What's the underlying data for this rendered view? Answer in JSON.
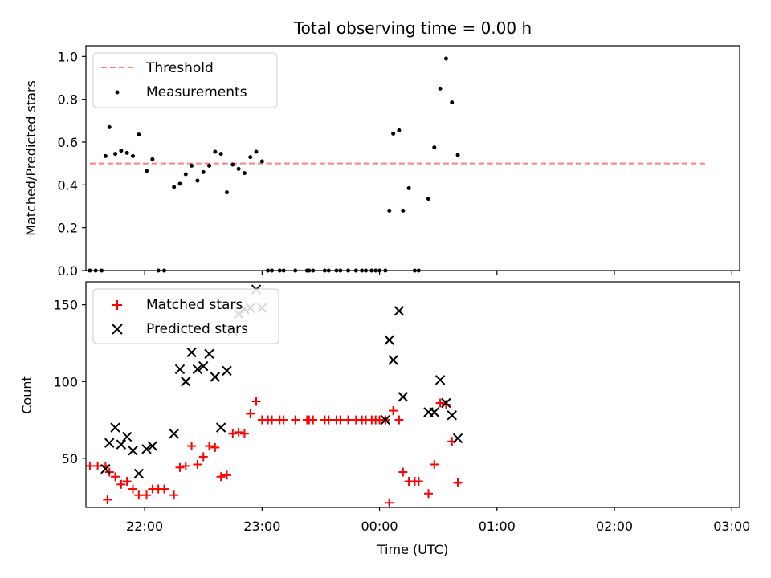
{
  "chart_data": [
    {
      "type": "scatter",
      "title": "Total observing time = 0.00 h",
      "ylabel": "Matched/Predicted stars",
      "xlim": [
        "21:30",
        "03:04"
      ],
      "ylim": [
        0,
        1.05
      ],
      "yticks": [
        "0.0",
        "0.2",
        "0.4",
        "0.6",
        "0.8",
        "1.0"
      ],
      "legend_position": "top-left",
      "series": [
        {
          "name": "Threshold",
          "style": "dashed-line",
          "color": "#ff7f7f",
          "points": [
            [
              "21:32",
              0.5
            ],
            [
              "02:48",
              0.5
            ]
          ]
        },
        {
          "name": "Measurements",
          "style": "dot",
          "color": "#000000",
          "points": [
            [
              "21:32",
              0.0
            ],
            [
              "21:35",
              0.0
            ],
            [
              "21:38",
              0.0
            ],
            [
              "21:40",
              0.535
            ],
            [
              "21:42",
              0.67
            ],
            [
              "21:45",
              0.545
            ],
            [
              "21:48",
              0.56
            ],
            [
              "21:51",
              0.55
            ],
            [
              "21:54",
              0.535
            ],
            [
              "21:57",
              0.635
            ],
            [
              "22:01",
              0.465
            ],
            [
              "22:04",
              0.52
            ],
            [
              "22:07",
              0.0
            ],
            [
              "22:10",
              0.0
            ],
            [
              "22:15",
              0.39
            ],
            [
              "22:18",
              0.405
            ],
            [
              "22:21",
              0.45
            ],
            [
              "22:24",
              0.49
            ],
            [
              "22:27",
              0.42
            ],
            [
              "22:30",
              0.46
            ],
            [
              "22:33",
              0.49
            ],
            [
              "22:36",
              0.555
            ],
            [
              "22:39",
              0.545
            ],
            [
              "22:42",
              0.365
            ],
            [
              "22:45",
              0.495
            ],
            [
              "22:48",
              0.475
            ],
            [
              "22:51",
              0.455
            ],
            [
              "22:54",
              0.53
            ],
            [
              "22:57",
              0.555
            ],
            [
              "23:00",
              0.51
            ],
            [
              "23:03",
              0.0
            ],
            [
              "23:05",
              0.0
            ],
            [
              "23:09",
              0.0
            ],
            [
              "23:11",
              0.0
            ],
            [
              "23:17",
              0.0
            ],
            [
              "23:23",
              0.0
            ],
            [
              "23:24",
              0.0
            ],
            [
              "23:26",
              0.0
            ],
            [
              "23:32",
              0.0
            ],
            [
              "23:34",
              0.0
            ],
            [
              "23:38",
              0.0
            ],
            [
              "23:40",
              0.0
            ],
            [
              "23:44",
              0.0
            ],
            [
              "23:48",
              0.0
            ],
            [
              "23:51",
              0.0
            ],
            [
              "23:53",
              0.0
            ],
            [
              "23:56",
              0.0
            ],
            [
              "23:58",
              0.0
            ],
            [
              "0:00",
              0.0
            ],
            [
              "0:03",
              0.0
            ],
            [
              "0:05",
              0.28
            ],
            [
              "0:07",
              0.64
            ],
            [
              "0:10",
              0.655
            ],
            [
              "0:12",
              0.28
            ],
            [
              "0:15",
              0.385
            ],
            [
              "0:18",
              0.0
            ],
            [
              "0:20",
              0.0
            ],
            [
              "0:25",
              0.335
            ],
            [
              "0:28",
              0.575
            ],
            [
              "0:31",
              0.85
            ],
            [
              "0:34",
              0.99
            ],
            [
              "0:37",
              0.785
            ],
            [
              "0:40",
              0.54
            ]
          ]
        }
      ]
    },
    {
      "type": "scatter",
      "xlabel": "Time (UTC)",
      "ylabel": "Count",
      "xticks": [
        "22:00",
        "23:00",
        "00:00",
        "01:00",
        "02:00",
        "03:00"
      ],
      "yticks": [
        "50",
        "100",
        "150"
      ],
      "ylim": [
        18,
        165
      ],
      "legend_position": "top-left",
      "series": [
        {
          "name": "Matched stars",
          "style": "plus",
          "color": "#ff0000",
          "points": [
            [
              "21:32",
              45
            ],
            [
              "21:36",
              45
            ],
            [
              "21:40",
              45
            ],
            [
              "21:41",
              23
            ],
            [
              "21:42",
              41
            ],
            [
              "21:45",
              38
            ],
            [
              "21:48",
              33
            ],
            [
              "21:51",
              35
            ],
            [
              "21:54",
              30
            ],
            [
              "21:57",
              26
            ],
            [
              "22:01",
              26
            ],
            [
              "22:04",
              30
            ],
            [
              "22:07",
              30
            ],
            [
              "22:10",
              30
            ],
            [
              "22:15",
              26
            ],
            [
              "22:18",
              44
            ],
            [
              "22:21",
              45
            ],
            [
              "22:24",
              58
            ],
            [
              "22:27",
              46
            ],
            [
              "22:30",
              51
            ],
            [
              "22:33",
              58
            ],
            [
              "22:36",
              57
            ],
            [
              "22:39",
              38
            ],
            [
              "22:42",
              39
            ],
            [
              "22:45",
              66
            ],
            [
              "22:48",
              67
            ],
            [
              "22:51",
              66
            ],
            [
              "22:54",
              79
            ],
            [
              "22:57",
              87
            ],
            [
              "23:00",
              75
            ],
            [
              "23:03",
              75
            ],
            [
              "23:05",
              75
            ],
            [
              "23:09",
              75
            ],
            [
              "23:11",
              75
            ],
            [
              "23:17",
              75
            ],
            [
              "23:23",
              75
            ],
            [
              "23:24",
              75
            ],
            [
              "23:26",
              75
            ],
            [
              "23:32",
              75
            ],
            [
              "23:34",
              75
            ],
            [
              "23:38",
              75
            ],
            [
              "23:40",
              75
            ],
            [
              "23:44",
              75
            ],
            [
              "23:48",
              75
            ],
            [
              "23:51",
              75
            ],
            [
              "23:53",
              75
            ],
            [
              "23:56",
              75
            ],
            [
              "23:58",
              75
            ],
            [
              "0:00",
              75
            ],
            [
              "0:03",
              75
            ],
            [
              "0:05",
              21
            ],
            [
              "0:07",
              81
            ],
            [
              "0:10",
              75
            ],
            [
              "0:12",
              41
            ],
            [
              "0:15",
              35
            ],
            [
              "0:18",
              35
            ],
            [
              "0:20",
              35
            ],
            [
              "0:25",
              27
            ],
            [
              "0:28",
              46
            ],
            [
              "0:31",
              86
            ],
            [
              "0:34",
              85
            ],
            [
              "0:37",
              61
            ],
            [
              "0:40",
              34
            ]
          ]
        },
        {
          "name": "Predicted stars",
          "style": "x",
          "color": "#000000",
          "points": [
            [
              "21:40",
              43
            ],
            [
              "21:42",
              60
            ],
            [
              "21:45",
              70
            ],
            [
              "21:48",
              59
            ],
            [
              "21:51",
              64
            ],
            [
              "21:54",
              55
            ],
            [
              "21:57",
              40
            ],
            [
              "22:01",
              56
            ],
            [
              "22:04",
              58
            ],
            [
              "22:15",
              66
            ],
            [
              "22:18",
              108
            ],
            [
              "22:21",
              100
            ],
            [
              "22:24",
              119
            ],
            [
              "22:27",
              108
            ],
            [
              "22:30",
              110
            ],
            [
              "22:33",
              118
            ],
            [
              "22:36",
              103
            ],
            [
              "22:39",
              70
            ],
            [
              "22:42",
              107
            ],
            [
              "22:45",
              133
            ],
            [
              "22:48",
              144
            ],
            [
              "22:51",
              147
            ],
            [
              "22:54",
              148
            ],
            [
              "22:57",
              160
            ],
            [
              "23:00",
              148
            ],
            [
              "0:03",
              75
            ],
            [
              "0:05",
              127
            ],
            [
              "0:07",
              114
            ],
            [
              "0:10",
              146
            ],
            [
              "0:12",
              90
            ],
            [
              "0:25",
              80
            ],
            [
              "0:28",
              80
            ],
            [
              "0:31",
              101
            ],
            [
              "0:34",
              86
            ],
            [
              "0:37",
              78
            ],
            [
              "0:40",
              63
            ]
          ]
        }
      ]
    }
  ]
}
